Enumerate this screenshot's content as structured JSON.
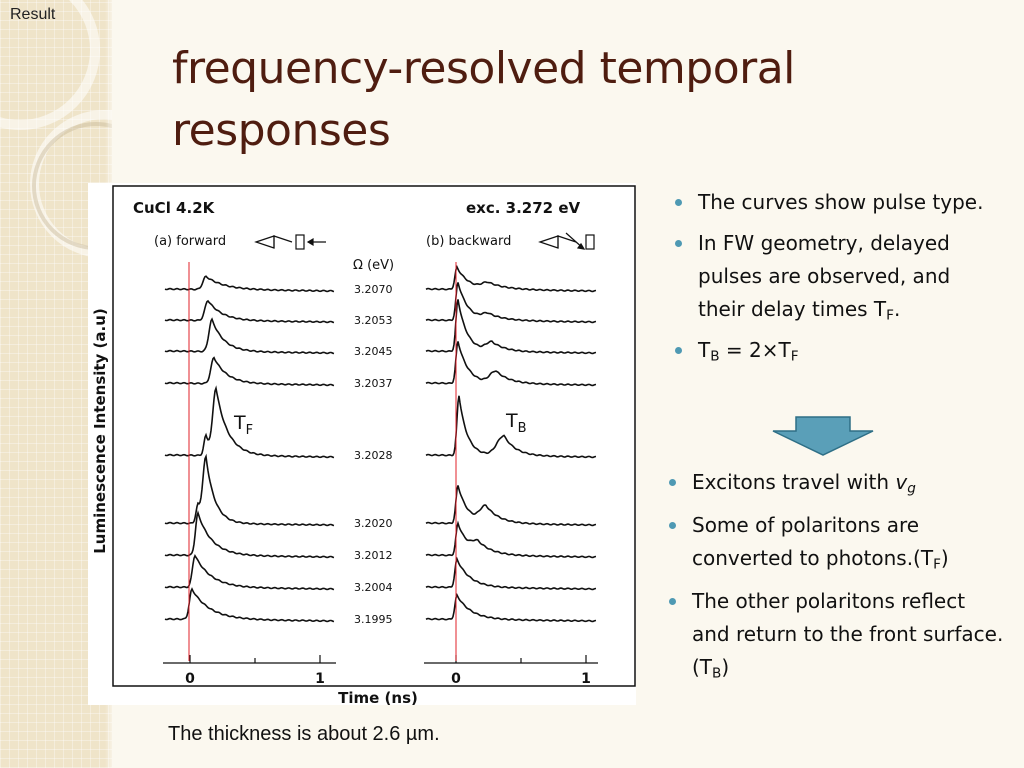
{
  "slide": {
    "section_label": "Result",
    "title": "frequency-resolved temporal responses",
    "caption": "The thickness is about 2.6 µm.",
    "colors": {
      "title": "#4f1d10",
      "bullet": "#4e99b3",
      "arrow": "#5a9fb8",
      "marker_line": "#e0202a"
    }
  },
  "bullets_top": {
    "b1": "The curves show pulse type.",
    "b2": "In FW geometry, delayed pulses are observed, and their delay times T",
    "b2_sub": "F",
    "b2_tail": ".",
    "b3_a": "T",
    "b3_a_sub": "B",
    "b3_mid": " = 2×T",
    "b3_b_sub": "F"
  },
  "bullets_bottom": {
    "b1_text": "Excitons travel with ",
    "b1_var": "v",
    "b1_var_sub": "g",
    "b2_text": "Some of polaritons are converted to photons.(T",
    "b2_sub": "F",
    "b2_close": ")",
    "b3_text": "The other polaritons reflect and return to the front surface.(T",
    "b3_sub": "B",
    "b3_close": ")"
  },
  "figure": {
    "sample": "CuCl  4.2K",
    "excitation": "exc. 3.272 eV",
    "panel_a": "(a) forward",
    "panel_b": "(b) backward",
    "omega_label": "Ω (eV)",
    "ylabel": "Luminescence  Intensity  (a.u)",
    "xlabel": "Time   (ns)",
    "label_tf": "T",
    "label_tf_sub": "F",
    "label_tb": "T",
    "label_tb_sub": "B",
    "x_ticks_a": [
      "0",
      "1"
    ],
    "x_ticks_b": [
      "0",
      "1"
    ],
    "energies": [
      "3.2070",
      "3.2053",
      "3.2045",
      "3.2037",
      "3.2028",
      "3.2020",
      "3.2012",
      "3.2004",
      "3.1995"
    ]
  }
}
